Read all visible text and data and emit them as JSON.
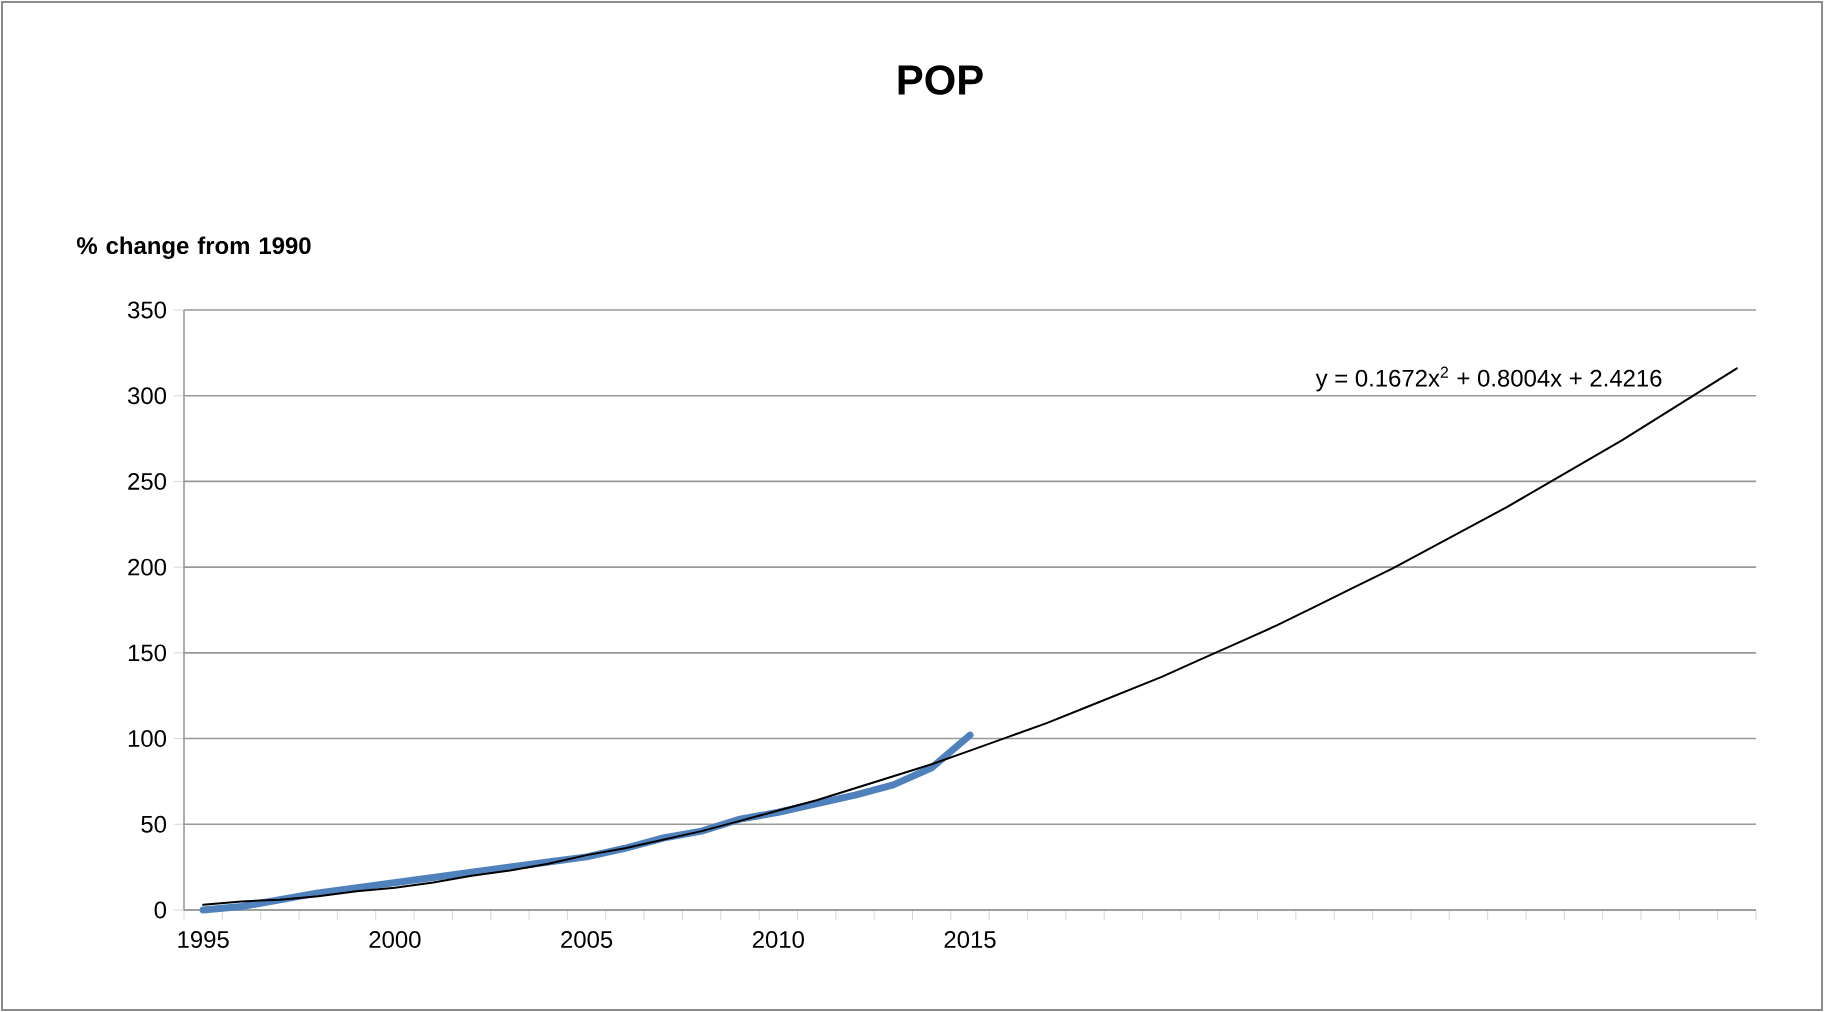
{
  "chart_data": {
    "type": "line",
    "title": "POP",
    "ylabel": "% change from 1990",
    "categories": [
      "1995",
      null,
      null,
      null,
      null,
      "2000",
      null,
      null,
      null,
      null,
      "2005",
      null,
      null,
      null,
      null,
      "2010",
      null,
      null,
      null,
      null,
      "2015",
      null,
      null,
      null,
      null,
      null,
      null,
      null,
      null,
      null,
      null,
      null,
      null,
      null,
      null,
      null,
      null,
      null,
      null,
      null,
      null
    ],
    "series": [
      {
        "type": "line",
        "color": "#4f81bd",
        "values": [
          0,
          2,
          6,
          10,
          13,
          16,
          19,
          22,
          25,
          28,
          31,
          36,
          42,
          46,
          53,
          57,
          62,
          67,
          73,
          83,
          102,
          null,
          null,
          null,
          null,
          null,
          null,
          null,
          null,
          null,
          null,
          null,
          null,
          null,
          null,
          null,
          null,
          null,
          null,
          null,
          null
        ]
      },
      {
        "type": "line",
        "color": "#000000",
        "values": [
          3,
          5,
          6,
          8,
          11,
          13,
          16,
          20,
          23,
          27,
          32,
          36,
          41,
          46,
          52,
          58,
          64,
          71,
          78,
          85,
          93,
          101,
          109,
          118,
          127,
          136,
          146,
          156,
          166,
          177,
          188,
          199,
          211,
          223,
          235,
          248,
          261,
          274,
          288,
          302,
          316
        ]
      }
    ],
    "ylim": [
      0,
      350
    ],
    "yticks": [
      0,
      50,
      100,
      150,
      200,
      250,
      300,
      350
    ],
    "grid": "y",
    "annotations": [
      "y = 0.1672x$^{2}$ + 0.8004x + 2.4216"
    ]
  }
}
